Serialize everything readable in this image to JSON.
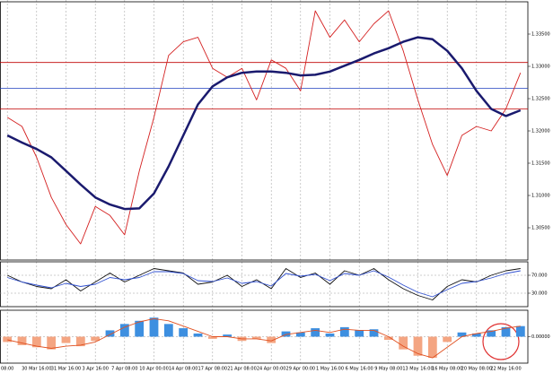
{
  "chart_data": [
    {
      "type": "line",
      "categories": [
        "08:00",
        null,
        "30 Mar 16:00",
        null,
        "31 Mar 16:00",
        null,
        "3 Apr 16:00",
        null,
        "7 Apr 08:00",
        null,
        "10 Apr 00:00",
        null,
        "14 Apr 08:00",
        null,
        "17 Apr 08:00",
        null,
        "21 Apr 08:00",
        null,
        "24 Apr 00:00",
        null,
        "29 Apr 00:00",
        null,
        "1 May 16:00",
        null,
        "6 May 16:00",
        null,
        "9 May 08:00",
        null,
        "13 May 16:00",
        null,
        "16 May 08:00",
        null,
        "20 May 08:00",
        null,
        "22 May 16:00",
        null
      ],
      "ylim": [
        1.3,
        1.34
      ],
      "yticks": [
        {
          "value": 1.305,
          "label": "1.30500"
        },
        {
          "value": 1.31,
          "label": "1.31000"
        },
        {
          "value": 1.315,
          "label": "1.31500"
        },
        {
          "value": 1.32,
          "label": "1.32000"
        },
        {
          "value": 1.325,
          "label": "1.32500"
        },
        {
          "value": 1.33,
          "label": "1.33000"
        },
        {
          "value": 1.335,
          "label": "1.33500"
        }
      ],
      "hlines": [
        {
          "value": 1.3306,
          "color": "#c00000"
        },
        {
          "value": 1.3234,
          "color": "#c00000"
        },
        {
          "value": 1.3266,
          "color": "#1f3fbf"
        }
      ],
      "series": [
        {
          "color": "#d42020",
          "values": [
            1.3221,
            1.3207,
            1.3159,
            1.3097,
            1.3055,
            1.3025,
            1.3083,
            1.3069,
            1.3039,
            1.3138,
            1.3221,
            1.3317,
            1.3338,
            1.3345,
            1.3297,
            1.3283,
            1.3297,
            1.3248,
            1.331,
            1.3297,
            1.3262,
            1.3386,
            1.3345,
            1.3372,
            1.3338,
            1.3366,
            1.3386,
            1.3324,
            1.3248,
            1.3179,
            1.3131,
            1.3193,
            1.3207,
            1.32,
            1.3234,
            1.329
          ]
        },
        {
          "color": "#1a1a6e",
          "values": [
            1.3193,
            1.3182,
            1.3172,
            1.3159,
            1.3138,
            1.3117,
            1.3097,
            1.3086,
            1.3079,
            1.308,
            1.3103,
            1.3145,
            1.3193,
            1.3241,
            1.3269,
            1.3283,
            1.329,
            1.3292,
            1.3292,
            1.329,
            1.3286,
            1.3287,
            1.3292,
            1.3301,
            1.331,
            1.332,
            1.3328,
            1.3338,
            1.3345,
            1.3342,
            1.3324,
            1.3297,
            1.3262,
            1.3234,
            1.3223,
            1.3232
          ]
        }
      ]
    },
    {
      "type": "line",
      "ylim": [
        0,
        100
      ],
      "yticks": [
        {
          "value": 30,
          "label": "30.000"
        },
        {
          "value": 70,
          "label": "70.000"
        }
      ],
      "series": [
        {
          "color": "#111111",
          "values": [
            70,
            55,
            45,
            40,
            60,
            35,
            55,
            75,
            55,
            70,
            85,
            80,
            75,
            50,
            55,
            70,
            45,
            60,
            40,
            85,
            65,
            75,
            50,
            80,
            70,
            85,
            60,
            40,
            25,
            15,
            45,
            60,
            55,
            70,
            80,
            85
          ]
        },
        {
          "color": "#3050d0",
          "values": [
            65,
            55,
            48,
            42,
            52,
            45,
            50,
            65,
            60,
            65,
            78,
            78,
            74,
            58,
            56,
            64,
            52,
            56,
            46,
            74,
            68,
            72,
            58,
            74,
            70,
            80,
            66,
            48,
            32,
            22,
            38,
            52,
            56,
            64,
            74,
            80
          ]
        }
      ]
    },
    {
      "type": "bar",
      "ylim": [
        -0.0025,
        0.0025
      ],
      "yticks": [
        {
          "value": 0,
          "label": "0.00000"
        }
      ],
      "values": [
        -0.0005,
        -0.0008,
        -0.001,
        -0.0012,
        -0.0006,
        -0.0009,
        -0.0004,
        0.0006,
        0.0012,
        0.0015,
        0.0018,
        0.0012,
        0.0008,
        0.0003,
        -0.0002,
        0.0002,
        -0.0004,
        -0.0002,
        -0.0006,
        0.0005,
        0.0004,
        0.0008,
        0.0003,
        0.0009,
        0.0006,
        0.0007,
        -0.0003,
        -0.0012,
        -0.0018,
        -0.002,
        -0.0005,
        0.0004,
        0.0003,
        0.0006,
        0.0009,
        0.001
      ],
      "colors": [
        "#3d8fe0",
        "#f4a582"
      ],
      "series": [
        {
          "color": "#e05020",
          "values": [
            -0.0003,
            -0.0006,
            -0.0009,
            -0.0011,
            -0.0009,
            -0.0008,
            -0.0005,
            0.0002,
            0.0009,
            0.0014,
            0.0017,
            0.0015,
            0.001,
            0.0005,
            0.0,
            0.0,
            -0.0002,
            -0.0002,
            -0.0004,
            0.0002,
            0.0004,
            0.0006,
            0.0004,
            0.0007,
            0.0006,
            0.0006,
            0.0,
            -0.0009,
            -0.0016,
            -0.002,
            -0.001,
            0.0,
            0.0003,
            0.0005,
            0.0008,
            0.001
          ]
        }
      ]
    }
  ]
}
